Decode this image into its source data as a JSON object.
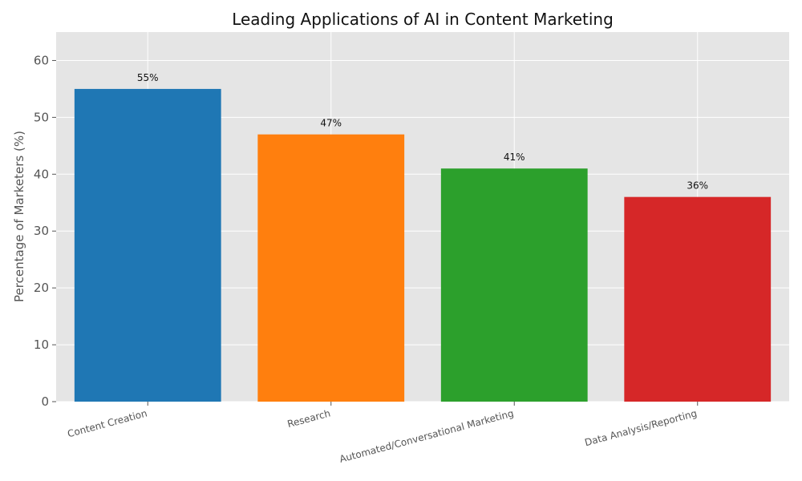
{
  "chart_data": {
    "type": "bar",
    "title": "Leading Applications of AI in Content Marketing",
    "xlabel": "",
    "ylabel": "Percentage of Marketers (%)",
    "categories": [
      "Content Creation",
      "Research",
      "Automated/Conversational Marketing",
      "Data Analysis/Reporting"
    ],
    "values": [
      55,
      47,
      41,
      36
    ],
    "data_labels": [
      "55%",
      "47%",
      "41%",
      "36%"
    ],
    "colors": [
      "#1f77b4",
      "#ff7f0e",
      "#2ca02c",
      "#d62728"
    ],
    "ylim": [
      0,
      65
    ],
    "yticks": [
      0,
      10,
      20,
      30,
      40,
      50,
      60
    ],
    "grid": true,
    "background": "#e5e5e5",
    "grid_color": "#ffffff"
  }
}
